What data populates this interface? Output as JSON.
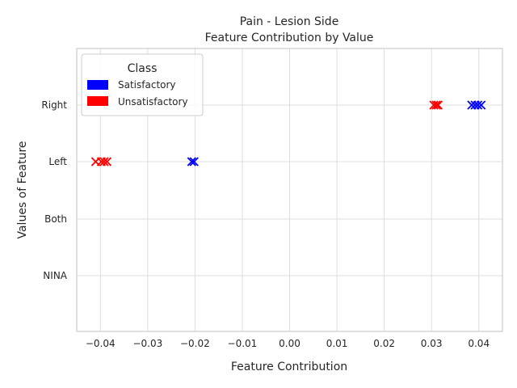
{
  "chart_data": {
    "type": "scatter",
    "title_line1": "Pain - Lesion Side",
    "title_line2": "Feature Contribution by Value",
    "xlabel": "Feature Contribution",
    "ylabel": "Values of Feature",
    "xlim": [
      -0.045,
      0.045
    ],
    "categories": [
      "Right",
      "Left",
      "Both",
      "NINA"
    ],
    "x_ticks": [
      -0.04,
      -0.03,
      -0.02,
      -0.01,
      0.0,
      0.01,
      0.02,
      0.03,
      0.04
    ],
    "x_tick_labels": [
      "−0.04",
      "−0.03",
      "−0.02",
      "−0.01",
      "0.00",
      "0.01",
      "0.02",
      "0.03",
      "0.04"
    ],
    "grid": true,
    "legend": {
      "title": "Class",
      "placement": "top-left",
      "entries": [
        "Satisfactory",
        "Unsatisfactory"
      ]
    },
    "series": [
      {
        "name": "Satisfactory",
        "color": "#0000ff",
        "marker": "x",
        "points": [
          {
            "x": 0.0385,
            "y": "Right"
          },
          {
            "x": 0.0392,
            "y": "Right"
          },
          {
            "x": 0.0398,
            "y": "Right"
          },
          {
            "x": 0.0405,
            "y": "Right"
          },
          {
            "x": -0.0207,
            "y": "Left"
          },
          {
            "x": -0.0202,
            "y": "Left"
          }
        ]
      },
      {
        "name": "Unsatisfactory",
        "color": "#ff0000",
        "marker": "x",
        "points": [
          {
            "x": 0.0305,
            "y": "Right"
          },
          {
            "x": 0.031,
            "y": "Right"
          },
          {
            "x": 0.0314,
            "y": "Right"
          },
          {
            "x": -0.041,
            "y": "Left"
          },
          {
            "x": -0.0398,
            "y": "Left"
          },
          {
            "x": -0.0392,
            "y": "Left"
          },
          {
            "x": -0.0386,
            "y": "Left"
          }
        ]
      }
    ]
  }
}
